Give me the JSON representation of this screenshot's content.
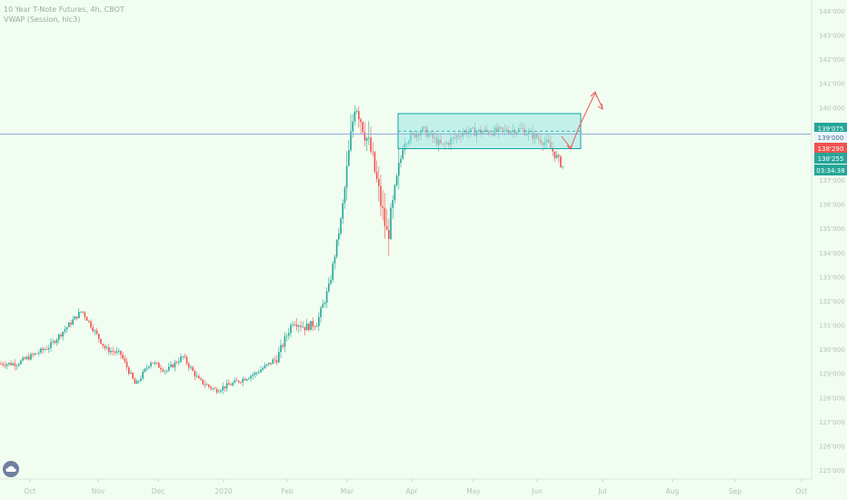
{
  "header": {
    "symbol_line": "10 Year T-Note Futures, 4h, CBOT",
    "indicator_line": "VWAP (Session, hlc3)"
  },
  "colors": {
    "background": "#f0fdf0",
    "up": "#26a69a",
    "down": "#ef5350",
    "range_fill": "#9fe8e6",
    "range_border": "#17a2a8",
    "h_line": "#8ab0e0",
    "projection": "#ef5350",
    "axis_text": "#b8c0b8"
  },
  "chart_data": {
    "type": "candlestick",
    "title": "",
    "xlabel": "",
    "ylabel": "",
    "x_ticks": [
      "Oct",
      "Nov",
      "Dec",
      "2020",
      "Feb",
      "Mar",
      "Apr",
      "May",
      "Jun",
      "Jul",
      "Aug",
      "Sep",
      "Oct"
    ],
    "y_ticks": [
      "125'000",
      "126'000",
      "127'000",
      "128'000",
      "129'000",
      "130'000",
      "131'000",
      "132'000",
      "133'000",
      "134'000",
      "135'000",
      "136'000",
      "137'000",
      "138'000",
      "139'000",
      "140'000",
      "141'000",
      "142'000",
      "143'000",
      "144'000"
    ],
    "ylim": [
      124.8,
      144.3
    ],
    "price_path": [
      [
        "Oct",
        129.4
      ],
      [
        "Oct",
        130.1
      ],
      [
        "Oct",
        131.6
      ],
      [
        "Nov",
        130.0
      ],
      [
        "Nov",
        129.8
      ],
      [
        "Nov",
        128.5
      ],
      [
        "Nov",
        129.5
      ],
      [
        "Dec",
        129.1
      ],
      [
        "Dec",
        129.7
      ],
      [
        "Dec",
        128.7
      ],
      [
        "Dec",
        128.3
      ],
      [
        "2020",
        128.6
      ],
      [
        "2020",
        129.0
      ],
      [
        "2020",
        129.6
      ],
      [
        "Feb",
        131.2
      ],
      [
        "Feb",
        130.9
      ],
      [
        "Feb",
        131.1
      ],
      [
        "Feb",
        132.6
      ],
      [
        "Feb",
        135.4
      ],
      [
        "Mar",
        140.3
      ],
      [
        "Mar",
        138.1
      ],
      [
        "Mar",
        134.6
      ],
      [
        "Mar",
        138.6
      ],
      [
        "Apr",
        139.1
      ],
      [
        "Apr",
        138.4
      ],
      [
        "Apr",
        139.0
      ],
      [
        "May",
        139.0
      ],
      [
        "May",
        139.1
      ],
      [
        "Jun",
        138.5
      ],
      [
        "Jun",
        137.1
      ],
      [
        "Jun",
        138.4
      ]
    ],
    "range_box": {
      "top": 139.75,
      "bottom": 138.3,
      "start": "Mar",
      "end": "Jun"
    },
    "horizontal_line": 138.9,
    "price_labels": [
      {
        "text": "139'075",
        "color": "#26a69a"
      },
      {
        "text": "139'000",
        "color": "#e8f4ff"
      },
      {
        "text": "138'290",
        "color": "#ef5350"
      },
      {
        "text": "138'255",
        "color": "#26a69a"
      },
      {
        "text": "03:34:38",
        "color": "#26a69a"
      }
    ],
    "grid": false
  }
}
